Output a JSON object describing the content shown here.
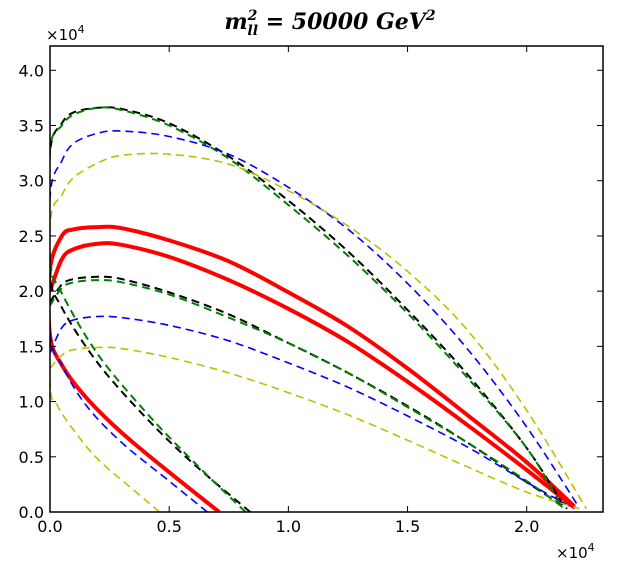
{
  "chart_data": {
    "type": "line",
    "title_main": "m",
    "title_sup": "2",
    "title_sub": "ll",
    "title_rest": " = 50000 GeV",
    "title_sup2": "2",
    "x_multiplier_base": "×10",
    "x_multiplier_exp": "4",
    "y_multiplier_base": "×10",
    "y_multiplier_exp": "4",
    "xlim": [
      0,
      23200
    ],
    "ylim": [
      0,
      42200
    ],
    "x_ticks": [
      0,
      5000,
      10000,
      15000,
      20000
    ],
    "x_tick_labels": [
      "0.0",
      "0.5",
      "1.0",
      "1.5",
      "2.0"
    ],
    "y_ticks": [
      0,
      5000,
      10000,
      15000,
      20000,
      25000,
      30000,
      35000,
      40000
    ],
    "y_tick_labels": [
      "0.0",
      "0.5",
      "1.0",
      "1.5",
      "2.0",
      "2.5",
      "3.0",
      "3.5",
      "4.0"
    ],
    "colors": {
      "red": "#ff0000",
      "black": "#000000",
      "green": "#007f00",
      "blue": "#0000ff",
      "yellow": "#bfbf00"
    },
    "series": [
      {
        "name": "red-outer",
        "color": "red",
        "dashed": false,
        "width": 4,
        "x": [
          7100,
          5000,
          3000,
          1500,
          500,
          0,
          0,
          500,
          1000,
          2000,
          3000,
          5000,
          7500,
          10000,
          12500,
          15000,
          17500,
          20000,
          22000
        ],
        "y": [
          0,
          3600,
          7200,
          10400,
          13300,
          16000,
          22000,
          25000,
          25600,
          25800,
          25700,
          24600,
          22700,
          19900,
          16800,
          13000,
          8800,
          4500,
          500
        ]
      },
      {
        "name": "red-inner",
        "color": "red",
        "dashed": false,
        "width": 4,
        "x": [
          0,
          500,
          1000,
          2000,
          3000,
          5000,
          7500,
          10000,
          12500,
          15000,
          17500,
          20000,
          22000
        ],
        "y": [
          20000,
          22900,
          23800,
          24300,
          24200,
          23100,
          21000,
          18400,
          15400,
          11800,
          7900,
          3800,
          400
        ]
      },
      {
        "name": "black-outer",
        "color": "black",
        "dashed": true,
        "width": 2,
        "x": [
          8400,
          6000,
          4000,
          2000,
          500,
          0,
          0,
          500,
          1000,
          2000,
          3000,
          5000,
          7500,
          10000,
          12500,
          15000,
          17500,
          20000,
          21600
        ],
        "y": [
          0,
          4400,
          8600,
          13500,
          18500,
          21800,
          32500,
          35200,
          36200,
          36600,
          36500,
          35200,
          32200,
          28200,
          23600,
          18300,
          12500,
          5800,
          400
        ]
      },
      {
        "name": "black-inner",
        "color": "black",
        "dashed": true,
        "width": 2,
        "x": [
          0,
          500,
          1000,
          2000,
          3000,
          5000,
          7500,
          10000,
          12500,
          15000,
          17500,
          20000,
          21700
        ],
        "y": [
          19000,
          20600,
          21100,
          21300,
          21100,
          19900,
          17900,
          15300,
          12600,
          9600,
          6300,
          2700,
          300
        ]
      },
      {
        "name": "green-outer",
        "color": "green",
        "dashed": true,
        "width": 2,
        "x": [
          8200,
          6000,
          4000,
          2000,
          500,
          0,
          0,
          500,
          1000,
          2000,
          3000,
          5000,
          7500,
          10000,
          12500,
          15000,
          17500,
          20000,
          21500
        ],
        "y": [
          0,
          4600,
          9100,
          14300,
          19800,
          23000,
          32800,
          35000,
          36000,
          36600,
          36400,
          35000,
          32000,
          27800,
          23200,
          18000,
          12200,
          5800,
          400
        ]
      },
      {
        "name": "green-inner",
        "color": "green",
        "dashed": true,
        "width": 2,
        "x": [
          0,
          500,
          1000,
          2000,
          3000,
          5000,
          7500,
          10000,
          12500,
          15000,
          17500,
          20000,
          21600
        ],
        "y": [
          18700,
          20300,
          20800,
          21000,
          20800,
          19700,
          17600,
          15300,
          12600,
          9500,
          6300,
          2800,
          300
        ]
      },
      {
        "name": "blue-outer",
        "color": "blue",
        "dashed": true,
        "width": 1.6,
        "x": [
          6600,
          5000,
          3000,
          1500,
          500,
          0,
          0,
          500,
          1000,
          2000,
          3000,
          5000,
          7500,
          10000,
          12500,
          15000,
          17500,
          20000,
          22200
        ],
        "y": [
          0,
          2800,
          6300,
          9700,
          13300,
          16500,
          28500,
          31800,
          33400,
          34300,
          34500,
          34000,
          32400,
          29400,
          25600,
          20700,
          14800,
          7700,
          400
        ]
      },
      {
        "name": "blue-inner",
        "color": "blue",
        "dashed": true,
        "width": 1.6,
        "x": [
          0,
          500,
          1000,
          2000,
          3000,
          5000,
          7500,
          10000,
          12500,
          15000,
          17500,
          20000,
          22000
        ],
        "y": [
          14400,
          16700,
          17400,
          17700,
          17600,
          16900,
          15500,
          13500,
          11300,
          8700,
          5900,
          2700,
          300
        ]
      },
      {
        "name": "yellow-outer",
        "color": "yellow",
        "dashed": true,
        "width": 1.6,
        "x": [
          4600,
          3500,
          2000,
          1000,
          300,
          0,
          0,
          500,
          1000,
          2000,
          3000,
          5000,
          7500,
          10000,
          12500,
          15000,
          17500,
          20000,
          22500
        ],
        "y": [
          0,
          2000,
          4800,
          7400,
          9700,
          12000,
          25800,
          28700,
          30300,
          31600,
          32300,
          32400,
          31500,
          29100,
          25900,
          21800,
          16500,
          9200,
          300
        ]
      },
      {
        "name": "yellow-inner",
        "color": "yellow",
        "dashed": true,
        "width": 1.6,
        "x": [
          0,
          500,
          1000,
          2000,
          3000,
          5000,
          7500,
          10000,
          12500,
          15000,
          17500,
          20000,
          22200
        ],
        "y": [
          13000,
          14200,
          14700,
          14900,
          14800,
          14000,
          12600,
          10800,
          8800,
          6500,
          4100,
          1800,
          300
        ]
      }
    ]
  }
}
